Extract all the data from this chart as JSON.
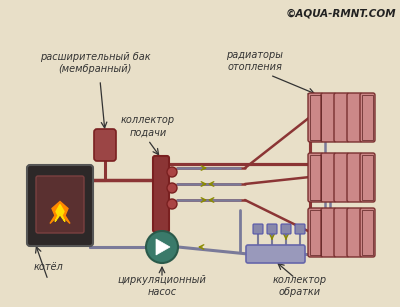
{
  "bg_color": "#e8dfc8",
  "hot_color": "#8B3535",
  "cold_color": "#7A7A99",
  "boiler_face": "#2d2828",
  "boiler_edge": "#555555",
  "boiler_inner": "#5a3030",
  "flame1": "#CC4400",
  "flame2": "#FF8800",
  "flame3": "#FFDD00",
  "tank_color": "#9B4545",
  "collector_color": "#8B3535",
  "radiator_color_top": "#CC8888",
  "radiator_color_bot": "#7A3030",
  "pump_color": "#3A7A6A",
  "pump_edge": "#2A5A4A",
  "ret_collector_color": "#9999BB",
  "ret_collector_edge": "#6666AA",
  "valve_color": "#AA4444",
  "arrow_color": "#8B8B00",
  "text_color": "#333333",
  "watermark": "©AQUA-RMNT.COM",
  "label_exp_tank": "расширительный бак\n(мембранный)",
  "label_collector": "коллектор\nподачи",
  "label_radiators": "радиаторы\nотопления",
  "label_boiler": "котёл",
  "label_pump": "циркуляционный\nнасос",
  "label_return": "коллектор\nобратки"
}
